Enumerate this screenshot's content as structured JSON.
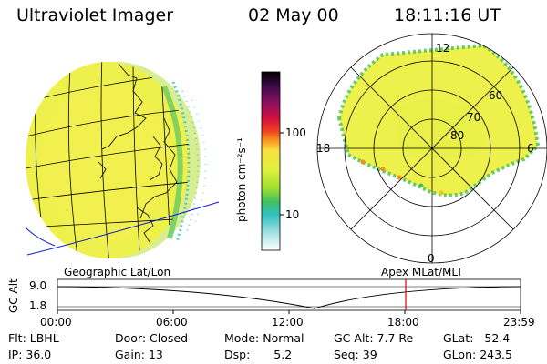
{
  "header": {
    "instrument": "Ultraviolet Imager",
    "date": "02 May 00",
    "time": "18:11:16 UT"
  },
  "colorbar": {
    "unit_label": "photon cm⁻²s⁻¹",
    "ticks": [
      "100",
      "10"
    ],
    "colors": [
      "#000000",
      "#3a0a4a",
      "#8a1060",
      "#d01040",
      "#f04020",
      "#f89020",
      "#f8e040",
      "#e0f040",
      "#a0e030",
      "#40c060",
      "#30c0c0",
      "#a0e0e0",
      "#ffffff"
    ]
  },
  "polar_plot": {
    "mlt_labels": {
      "top": "12",
      "left": "18",
      "right": "6",
      "bottom": "0"
    },
    "lat_labels": [
      "60",
      "70",
      "80"
    ]
  },
  "timeline": {
    "left_label": "Geographic Lat/Lon",
    "right_label": "Apex MLat/MLT",
    "axis_label": "GC Alt",
    "y_ticks": [
      "9.0",
      "1.8"
    ],
    "x_ticks": [
      "00:00",
      "06:00",
      "12:00",
      "18:00",
      "23:59"
    ],
    "marker_color": "#e00000"
  },
  "info": {
    "row1": [
      {
        "label": "Flt:",
        "value": "LBHL"
      },
      {
        "label": "Door:",
        "value": "Closed"
      },
      {
        "label": "Mode:",
        "value": "Normal"
      },
      {
        "label": "GC Alt:",
        "value": "7.7 Re"
      },
      {
        "label": "GLat:",
        "value": "52.4"
      }
    ],
    "row2": [
      {
        "label": "IP:",
        "value": "36.0"
      },
      {
        "label": "Gain:",
        "value": "13"
      },
      {
        "label": "Dsp:",
        "value": "5.2"
      },
      {
        "label": "Seq:",
        "value": "39"
      },
      {
        "label": "GLon:",
        "value": "243.5"
      }
    ]
  }
}
